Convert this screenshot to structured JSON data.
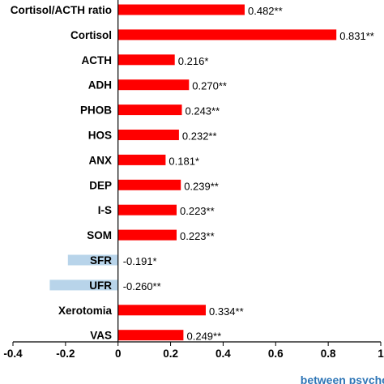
{
  "chart_data": {
    "type": "bar",
    "orientation": "horizontal",
    "categories": [
      "Cortisol/ACTH ratio",
      "Cortisol",
      "ACTH",
      "ADH",
      "PHOB",
      "HOS",
      "ANX",
      "DEP",
      "I-S",
      "SOM",
      "SFR",
      "UFR",
      "Xerotomia",
      "VAS"
    ],
    "values": [
      0.482,
      0.831,
      0.216,
      0.27,
      0.243,
      0.232,
      0.181,
      0.239,
      0.223,
      0.223,
      -0.191,
      -0.26,
      0.334,
      0.249
    ],
    "value_labels": [
      "0.482**",
      "0.831**",
      "0.216*",
      "0.270**",
      "0.243**",
      "0.232**",
      "0.181*",
      "0.239**",
      "0.223**",
      "0.223**",
      "-0.191*",
      "-0.260**",
      "0.334**",
      "0.249**"
    ],
    "xlim": [
      -0.4,
      1.0
    ],
    "xticks": [
      "-0.4",
      "-0.2",
      "0",
      "0.2",
      "0.4",
      "0.6",
      "0.8",
      "1"
    ],
    "xtick_values": [
      -0.4,
      -0.2,
      0,
      0.2,
      0.4,
      0.6,
      0.8,
      1.0
    ],
    "xlabel": "between psychological stress",
    "grid": false,
    "colors": {
      "positive": "#ff0000",
      "negative": "#b8d4ea",
      "xlabel": "#2e75b6",
      "axis": "#000000"
    }
  }
}
